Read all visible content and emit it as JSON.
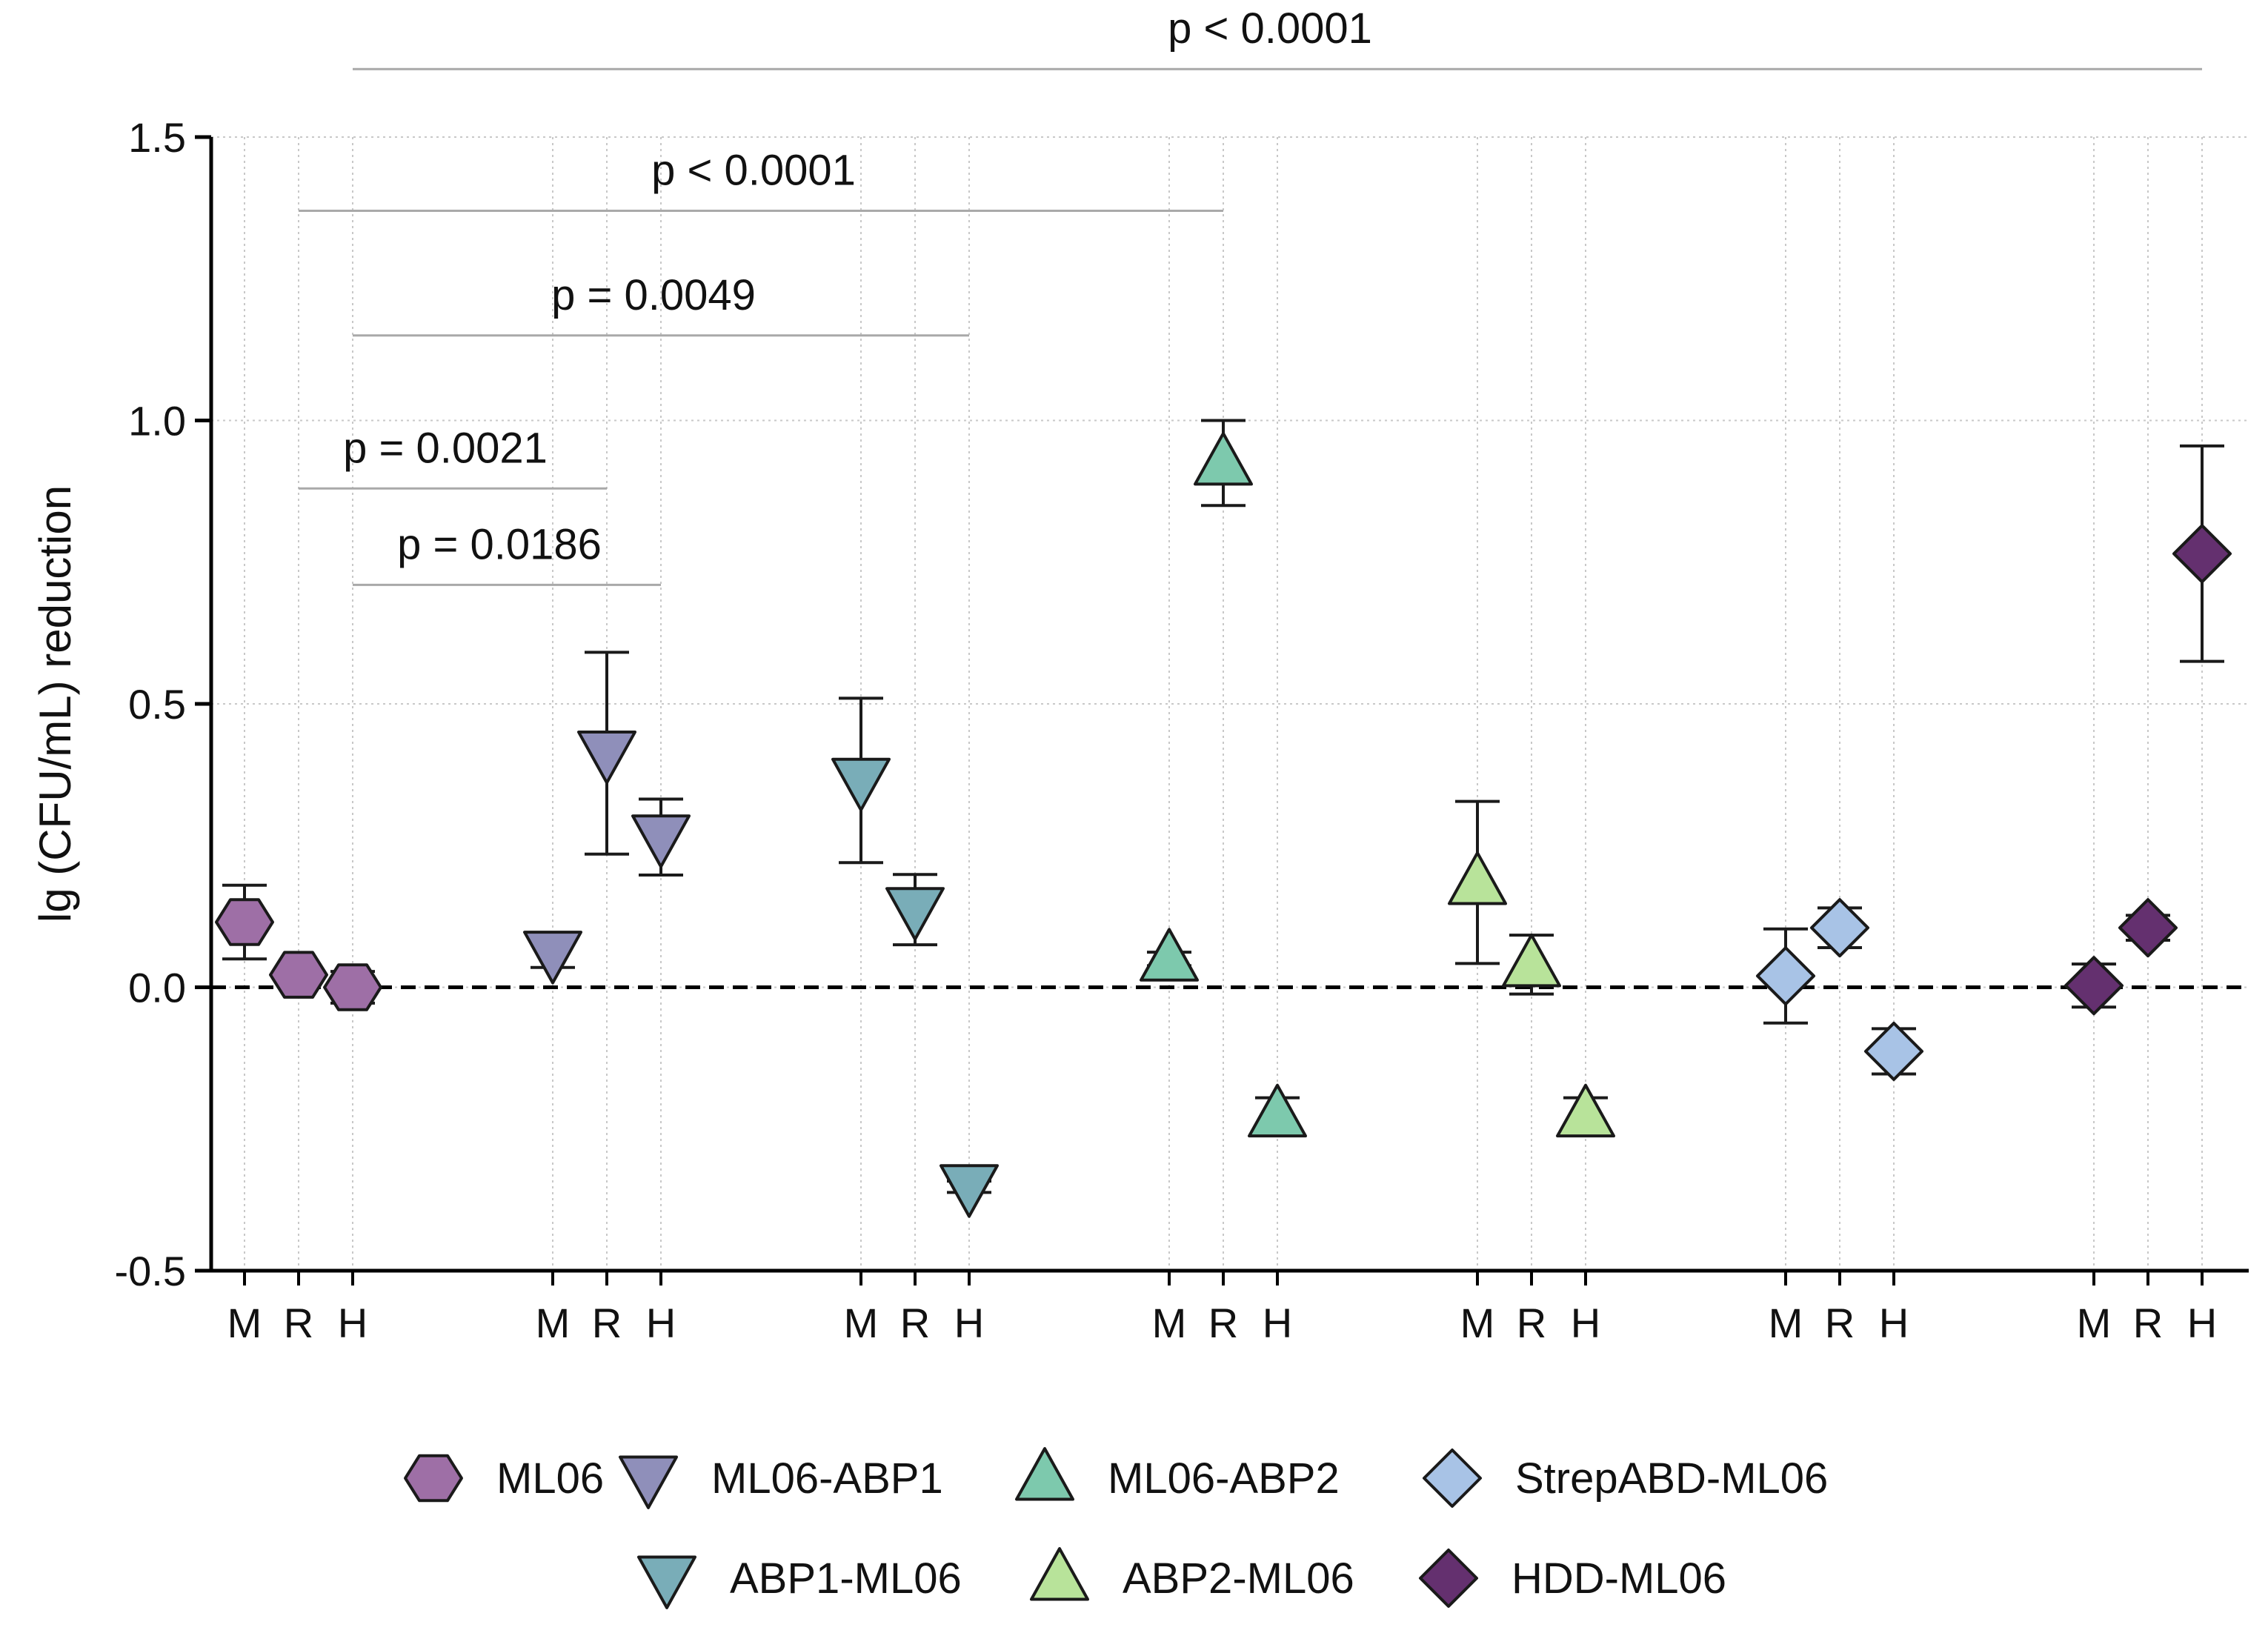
{
  "chart_data": {
    "type": "scatter",
    "ylabel": "lg (CFU/mL) reduction",
    "xlabel": "",
    "ylim": [
      -0.5,
      1.5
    ],
    "yticks": [
      -0.5,
      0.0,
      0.5,
      1.0,
      1.5
    ],
    "ytick_labels": [
      "-0.5",
      "0.0",
      "0.5",
      "1.0",
      "1.5"
    ],
    "grid": true,
    "reference_line": 0.0,
    "categories": [
      "M",
      "R",
      "H"
    ],
    "groups": [
      {
        "name": "ML06",
        "marker": "hexagon",
        "color": "#9e6fa6",
        "points": [
          {
            "cat": "M",
            "y": 0.115,
            "err": 0.065
          },
          {
            "cat": "R",
            "y": 0.022,
            "err": 0.015
          },
          {
            "cat": "H",
            "y": 0.0,
            "err": 0.028
          }
        ]
      },
      {
        "name": "ML06-ABP1",
        "marker": "triangle-down",
        "color": "#8f8fba",
        "points": [
          {
            "cat": "M",
            "y": 0.06,
            "err": 0.025
          },
          {
            "cat": "R",
            "y": 0.413,
            "err": 0.178
          },
          {
            "cat": "H",
            "y": 0.265,
            "err": 0.067
          }
        ]
      },
      {
        "name": "ABP1-ML06",
        "marker": "triangle-down",
        "color": "#79adb8",
        "points": [
          {
            "cat": "M",
            "y": 0.365,
            "err": 0.145
          },
          {
            "cat": "R",
            "y": 0.137,
            "err": 0.062
          },
          {
            "cat": "H",
            "y": -0.352,
            "err": 0.01
          }
        ]
      },
      {
        "name": "ML06-ABP2",
        "marker": "triangle-up",
        "color": "#7dc9ad",
        "points": [
          {
            "cat": "M",
            "y": 0.05,
            "err": 0.012
          },
          {
            "cat": "R",
            "y": 0.925,
            "err": 0.075
          },
          {
            "cat": "H",
            "y": -0.225,
            "err": 0.03
          }
        ]
      },
      {
        "name": "ABP2-ML06",
        "marker": "triangle-up",
        "color": "#b8e39a",
        "points": [
          {
            "cat": "M",
            "y": 0.185,
            "err": 0.143
          },
          {
            "cat": "R",
            "y": 0.04,
            "err": 0.052
          },
          {
            "cat": "H",
            "y": -0.225,
            "err": 0.03
          }
        ]
      },
      {
        "name": "StrepABD-ML06",
        "marker": "diamond",
        "color": "#a8c3e6",
        "points": [
          {
            "cat": "M",
            "y": 0.02,
            "err": 0.083
          },
          {
            "cat": "R",
            "y": 0.105,
            "err": 0.035
          },
          {
            "cat": "H",
            "y": -0.113,
            "err": 0.04
          }
        ]
      },
      {
        "name": "HDD-ML06",
        "marker": "diamond",
        "color": "#64306f",
        "points": [
          {
            "cat": "M",
            "y": 0.003,
            "err": 0.038
          },
          {
            "cat": "R",
            "y": 0.105,
            "err": 0.022
          },
          {
            "cat": "H",
            "y": 0.765,
            "err": 0.19
          }
        ]
      }
    ],
    "annotations": [
      {
        "text": "p < 0.0001",
        "from": [
          0,
          "H"
        ],
        "to": [
          6,
          "H"
        ],
        "level": 1.62
      },
      {
        "text": "p < 0.0001",
        "from": [
          0,
          "R"
        ],
        "to": [
          3,
          "R"
        ],
        "level": 1.37
      },
      {
        "text": "p = 0.0049",
        "from": [
          0,
          "H"
        ],
        "to": [
          2,
          "H"
        ],
        "level": 1.15
      },
      {
        "text": "p = 0.0021",
        "from": [
          0,
          "R"
        ],
        "to": [
          1,
          "R"
        ],
        "level": 0.88
      },
      {
        "text": "p = 0.0186",
        "from": [
          0,
          "H"
        ],
        "to": [
          1,
          "H"
        ],
        "level": 0.71
      }
    ],
    "legend": {
      "position": "bottom",
      "rows": [
        [
          "ML06",
          "ML06-ABP1",
          "ML06-ABP2",
          "StrepABD-ML06"
        ],
        [
          "ABP1-ML06",
          "ABP2-ML06",
          "HDD-ML06"
        ]
      ]
    }
  }
}
